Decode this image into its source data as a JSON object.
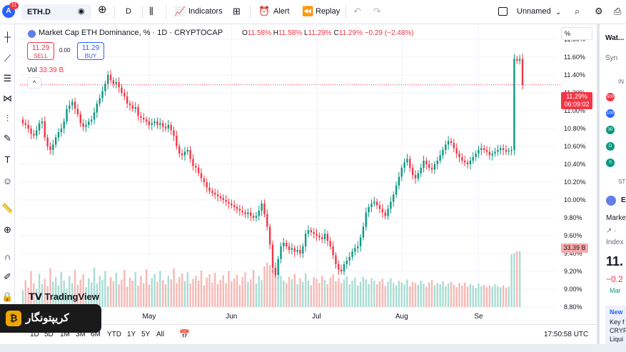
{
  "toolbar": {
    "avatar_letter": "A",
    "avatar_badge": "11",
    "symbol": "ETH.D",
    "interval": "D",
    "indicators": "Indicators",
    "alert": "Alert",
    "replay": "Replay",
    "layout_name": "Unnamed"
  },
  "legend": {
    "title": "Market Cap ETH Dominance, % · 1D · CRYPTOCAP",
    "o_label": "O",
    "o": "11.58%",
    "h_label": "H",
    "h": "11.58%",
    "l_label": "L",
    "l": "11.29%",
    "c_label": "C",
    "c": "11.29%",
    "change": "−0.29 (−2.48%)"
  },
  "trade": {
    "sell_price": "11.29",
    "sell_label": "SELL",
    "spread": "0.00",
    "buy_price": "11.29",
    "buy_label": "BUY"
  },
  "volume": {
    "label": "Vol",
    "value": "33.39 B"
  },
  "axis": {
    "percent_button": "%",
    "price_tag": "11.29%",
    "countdown": "06:09:02",
    "volume_tag": "33.39 B"
  },
  "branding": {
    "tradingview": "TradingView",
    "promo": "کریپتونگار"
  },
  "bottom": {
    "ranges": [
      "1D",
      "5D",
      "1M",
      "3M",
      "6M",
      "YTD",
      "1Y",
      "5Y",
      "All"
    ],
    "clock": "17:50:58 UTC"
  },
  "rightpanel": {
    "watchlist": "Wat...",
    "syn": "Syn",
    "in": "IN",
    "st": "ST",
    "e": "E",
    "market": "Market",
    "index": "Index",
    "price": "11.",
    "change": "−0.2",
    "mar": "Mar",
    "news": "New",
    "key": "Key f",
    "cry": "CRYP",
    "liq": "Liqui",
    "badges": [
      "500",
      "100",
      "30",
      "D",
      "S"
    ]
  },
  "chart_data": {
    "type": "candlestick",
    "symbol": "ETH.D",
    "ylabel": "%",
    "ylim": [
      8.72,
      11.92
    ],
    "y_ticks": [
      11.8,
      11.6,
      11.4,
      11.2,
      11.0,
      10.8,
      10.6,
      10.4,
      10.2,
      10.0,
      9.8,
      9.6,
      9.4,
      9.2,
      9.0,
      8.8
    ],
    "x_labels": [
      "May",
      "Jun",
      "Jul",
      "Aug",
      "Se"
    ],
    "last_price": 11.29,
    "volume_last": "33.39 B",
    "close": [
      10.86,
      10.84,
      10.8,
      10.74,
      10.72,
      10.78,
      10.86,
      10.88,
      10.7,
      10.6,
      10.56,
      10.62,
      10.7,
      10.76,
      10.8,
      10.88,
      11.02,
      11.06,
      11.1,
      11.02,
      10.96,
      10.86,
      10.82,
      10.84,
      10.88,
      10.9,
      10.98,
      11.08,
      11.14,
      11.22,
      11.3,
      11.4,
      11.34,
      11.3,
      11.32,
      11.26,
      11.2,
      11.16,
      11.08,
      11.06,
      11.02,
      11.04,
      10.94,
      10.92,
      10.9,
      10.88,
      10.84,
      10.86,
      10.88,
      10.84,
      10.86,
      10.82,
      10.8,
      10.84,
      10.78,
      10.72,
      10.6,
      10.52,
      10.5,
      10.54,
      10.56,
      10.46,
      10.38,
      10.36,
      10.3,
      10.24,
      10.2,
      10.14,
      10.1,
      10.08,
      10.06,
      10.04,
      10.02,
      10.0,
      9.98,
      9.96,
      9.94,
      9.92,
      9.9,
      9.88,
      9.86,
      9.84,
      9.86,
      9.82,
      9.8,
      9.82,
      9.88,
      9.96,
      9.84,
      9.7,
      9.5,
      9.24,
      9.16,
      9.34,
      9.48,
      9.52,
      9.48,
      9.44,
      9.46,
      9.42,
      9.44,
      9.4,
      9.48,
      9.62,
      9.66,
      9.64,
      9.62,
      9.6,
      9.58,
      9.56,
      9.62,
      9.54,
      9.48,
      9.38,
      9.28,
      9.22,
      9.2,
      9.28,
      9.32,
      9.36,
      9.42,
      9.46,
      9.48,
      9.58,
      9.7,
      9.86,
      9.92,
      9.96,
      9.98,
      9.94,
      9.9,
      9.86,
      9.82,
      9.9,
      9.98,
      10.06,
      10.16,
      10.26,
      10.36,
      10.42,
      10.46,
      10.36,
      10.28,
      10.24,
      10.3,
      10.36,
      10.44,
      10.4,
      10.36,
      10.34,
      10.4,
      10.44,
      10.5,
      10.56,
      10.62,
      10.66,
      10.64,
      10.58,
      10.52,
      10.48,
      10.44,
      10.42,
      10.4,
      10.44,
      10.48,
      10.52,
      10.56,
      10.58,
      10.56,
      10.54,
      10.5,
      10.52,
      10.54,
      10.56,
      10.58,
      10.56,
      10.54,
      10.55,
      10.56,
      11.58,
      11.56,
      11.58,
      11.29
    ],
    "volume_rel": [
      0.28,
      0.45,
      0.32,
      0.6,
      0.4,
      0.3,
      0.55,
      0.38,
      0.47,
      0.35,
      0.65,
      0.42,
      0.5,
      0.36,
      0.58,
      0.44,
      0.3,
      0.52,
      0.4,
      0.62,
      0.37,
      0.46,
      0.55,
      0.33,
      0.48,
      0.41,
      0.66,
      0.39,
      0.52,
      0.45,
      0.6,
      0.35,
      0.5,
      0.43,
      0.57,
      0.38,
      0.46,
      0.62,
      0.34,
      0.49,
      0.44,
      0.58,
      0.36,
      0.52,
      0.4,
      0.63,
      0.37,
      0.48,
      0.55,
      0.42,
      0.6,
      0.45,
      0.38,
      0.52,
      0.46,
      0.64,
      0.4,
      0.5,
      0.56,
      0.43,
      0.58,
      0.39,
      0.47,
      0.52,
      0.44,
      0.61,
      0.36,
      0.49,
      0.55,
      0.41,
      0.57,
      0.38,
      0.45,
      0.53,
      0.4,
      0.6,
      0.43,
      0.48,
      0.54,
      0.37,
      0.5,
      0.58,
      0.42,
      0.46,
      0.62,
      0.39,
      0.52,
      0.45,
      0.68,
      0.74,
      0.7,
      0.62,
      0.55,
      0.48,
      0.52,
      0.44,
      0.4,
      0.5,
      0.46,
      0.55,
      0.38,
      0.48,
      0.42,
      0.56,
      0.44,
      0.36,
      0.5,
      0.47,
      0.4,
      0.52,
      0.45,
      0.38,
      0.49,
      0.55,
      0.43,
      0.48,
      0.4,
      0.46,
      0.51,
      0.38,
      0.44,
      0.49,
      0.36,
      0.42,
      0.5,
      0.46,
      0.39,
      0.48,
      0.44,
      0.38,
      0.43,
      0.47,
      0.35,
      0.42,
      0.48,
      0.4,
      0.36,
      0.44,
      0.41,
      0.38,
      0.46,
      0.35,
      0.42,
      0.4,
      0.37,
      0.44,
      0.39,
      0.34,
      0.41,
      0.45,
      0.36,
      0.4,
      0.38,
      0.43,
      0.35,
      0.39,
      0.42,
      0.37,
      0.33,
      0.4,
      0.36,
      0.41,
      0.34,
      0.38,
      0.36,
      0.32,
      0.39,
      0.35,
      0.37,
      0.33,
      0.36,
      0.34,
      0.38,
      0.35,
      0.33,
      0.36,
      0.32,
      0.34,
      0.88,
      0.9,
      0.93,
      0.93
    ]
  }
}
